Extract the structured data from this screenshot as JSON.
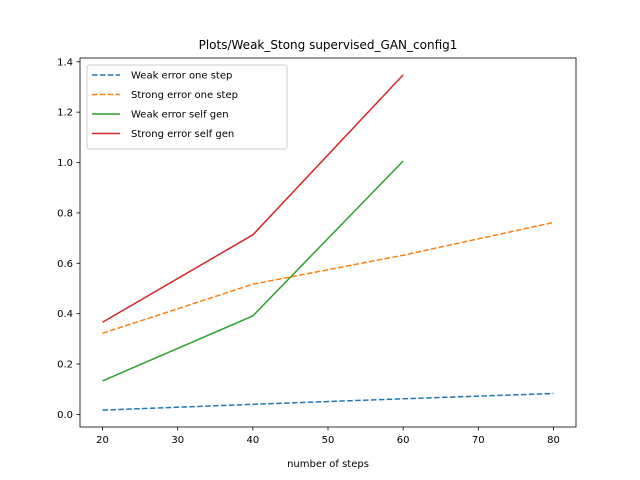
{
  "chart_data": {
    "type": "line",
    "title": "Plots/Weak_Stong supervised_GAN_config1",
    "xlabel": "number of steps",
    "ylabel": "",
    "xlim": [
      17,
      83
    ],
    "ylim": [
      -0.05,
      1.415
    ],
    "xticks": [
      20,
      30,
      40,
      50,
      60,
      70,
      80
    ],
    "yticks": [
      0.0,
      0.2,
      0.4,
      0.6,
      0.8,
      1.0,
      1.2,
      1.4
    ],
    "grid": false,
    "legend_position": "upper left",
    "series": [
      {
        "name": "Weak error one step",
        "x": [
          20,
          40,
          60,
          80
        ],
        "y": [
          0.017,
          0.04,
          0.062,
          0.083
        ],
        "color": "#1f77b4",
        "dash": "dashed"
      },
      {
        "name": "Strong error one step",
        "x": [
          20,
          40,
          60,
          80
        ],
        "y": [
          0.322,
          0.517,
          0.632,
          0.762
        ],
        "color": "#ff7f0e",
        "dash": "dashed"
      },
      {
        "name": "Weak error self gen",
        "x": [
          20,
          40,
          60
        ],
        "y": [
          0.133,
          0.391,
          1.006
        ],
        "color": "#2ca02c",
        "dash": "solid"
      },
      {
        "name": "Strong error self gen",
        "x": [
          20,
          40,
          60
        ],
        "y": [
          0.366,
          0.713,
          1.348
        ],
        "color": "#d62728",
        "dash": "solid"
      }
    ]
  }
}
